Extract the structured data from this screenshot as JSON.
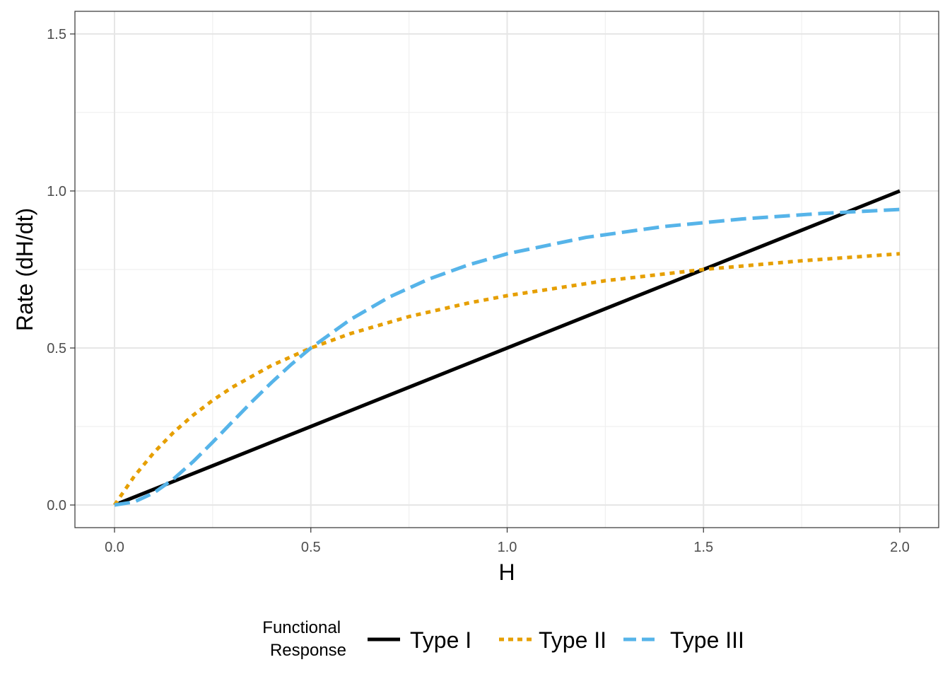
{
  "chart_data": {
    "type": "line",
    "title": "",
    "xlabel": "H",
    "ylabel": "Rate (dH/dt)",
    "xlim": [
      0,
      2
    ],
    "ylim": [
      0,
      1.5
    ],
    "x_ticks": [
      "0.0",
      "0.5",
      "1.0",
      "1.5",
      "2.0"
    ],
    "y_ticks": [
      "0.0",
      "0.5",
      "1.0",
      "1.5"
    ],
    "grid": true,
    "legend": {
      "title_lines": [
        "Functional",
        "Response"
      ],
      "placement": "bottom"
    },
    "series": [
      {
        "name": "Type I",
        "color": "#000000",
        "dash": "solid",
        "x": [
          0,
          0.25,
          0.5,
          0.75,
          1.0,
          1.25,
          1.5,
          1.75,
          2.0
        ],
        "y": [
          0,
          0.125,
          0.25,
          0.375,
          0.5,
          0.625,
          0.75,
          0.875,
          1.0
        ]
      },
      {
        "name": "Type II",
        "color": "#E69F00",
        "dash": "dotted",
        "x": [
          0,
          0.05,
          0.1,
          0.15,
          0.2,
          0.25,
          0.3,
          0.4,
          0.5,
          0.6,
          0.75,
          0.9,
          1.0,
          1.25,
          1.5,
          1.75,
          2.0
        ],
        "y": [
          0,
          0.0909,
          0.1667,
          0.2308,
          0.2857,
          0.3333,
          0.375,
          0.4444,
          0.5,
          0.5455,
          0.6,
          0.6429,
          0.6667,
          0.7143,
          0.75,
          0.7778,
          0.8
        ]
      },
      {
        "name": "Type III",
        "color": "#56B4E9",
        "dash": "dashed",
        "x": [
          0,
          0.05,
          0.1,
          0.15,
          0.2,
          0.25,
          0.3,
          0.35,
          0.4,
          0.45,
          0.5,
          0.6,
          0.7,
          0.8,
          0.9,
          1.0,
          1.2,
          1.4,
          1.6,
          1.8,
          2.0
        ],
        "y": [
          0,
          0.0099,
          0.0385,
          0.0826,
          0.1379,
          0.2,
          0.2647,
          0.3289,
          0.3902,
          0.4475,
          0.5,
          0.5902,
          0.6622,
          0.7191,
          0.7642,
          0.8,
          0.8521,
          0.8869,
          0.911,
          0.9284,
          0.9412
        ]
      }
    ]
  }
}
